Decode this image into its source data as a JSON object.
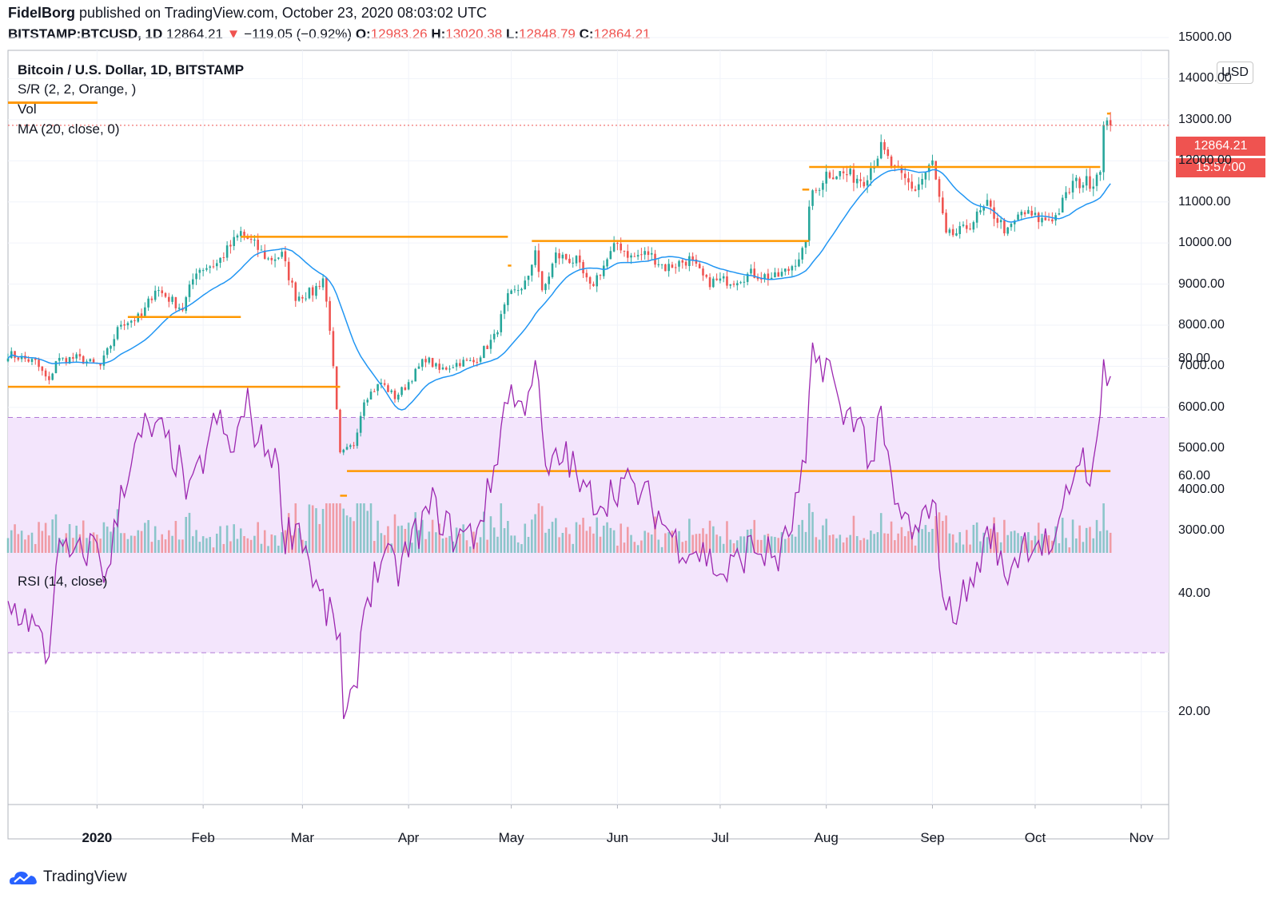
{
  "header": {
    "author": "FidelBorg",
    "published_text": "published on TradingView.com, October 23, 2020 08:03:02 UTC",
    "symbol": "BITSTAMP:BTCUSD, 1D",
    "last": "12864.21",
    "change_arrow": "▼",
    "change": "−119.05 (−0.92%)",
    "o_label": "O:",
    "o": "12983.26",
    "h_label": "H:",
    "h": "13020.38",
    "l_label": "L:",
    "l": "12848.79",
    "c_label": "C:",
    "c": "12864.21"
  },
  "legend": {
    "title": "Bitcoin / U.S. Dollar, 1D, BITSTAMP",
    "sr": "S/R (2, 2, Orange, )",
    "vol": "Vol",
    "ma": "MA (20, close, 0)",
    "rsi": "RSI (14, close)"
  },
  "price_axis": {
    "currency": "USD",
    "labels": [
      "15000.00",
      "14000.00",
      "13000.00",
      "12000.00",
      "11000.00",
      "10000.00",
      "9000.00",
      "8000.00",
      "7000.00",
      "6000.00",
      "5000.00",
      "4000.00",
      "3000.00"
    ],
    "last_price_tag": "12864.21",
    "countdown_tag": "15:57:00"
  },
  "rsi_axis": {
    "labels": [
      "80.00",
      "60.00",
      "40.00",
      "20.00"
    ]
  },
  "time_axis": {
    "labels": [
      "2020",
      "Feb",
      "Mar",
      "Apr",
      "May",
      "Jun",
      "Jul",
      "Aug",
      "Sep",
      "Oct",
      "Nov"
    ]
  },
  "colors": {
    "up": "#26a69a",
    "down": "#ef5350",
    "ma": "#2196f3",
    "sr": "#ff9800",
    "rsi": "#9c27b0",
    "rsi_band": "#f3e5fc",
    "grid": "#f0f3fa",
    "axis": "#b2b5be"
  },
  "brand": {
    "name": "TradingView"
  },
  "chart_data": {
    "type": "candlestick",
    "timeframe": "1D",
    "series_names": [
      "Bitcoin / U.S. Dollar",
      "MA (20, close, 0)",
      "RSI (14, close)"
    ],
    "y_range": [
      2900,
      15100
    ],
    "rsi_range": [
      7,
      93
    ],
    "rsi_bands": [
      30,
      70
    ],
    "close_anchors": [
      [
        "2019-12-06",
        7300
      ],
      [
        "2019-12-10",
        7200
      ],
      [
        "2019-12-14",
        7100
      ],
      [
        "2019-12-18",
        6600
      ],
      [
        "2019-12-20",
        7150
      ],
      [
        "2019-12-26",
        7200
      ],
      [
        "2020-01-02",
        7000
      ],
      [
        "2020-01-08",
        8050
      ],
      [
        "2020-01-14",
        8200
      ],
      [
        "2020-01-18",
        8900
      ],
      [
        "2020-01-22",
        8650
      ],
      [
        "2020-01-26",
        8400
      ],
      [
        "2020-01-30",
        9350
      ],
      [
        "2020-02-05",
        9500
      ],
      [
        "2020-02-12",
        10250
      ],
      [
        "2020-02-16",
        9950
      ],
      [
        "2020-02-20",
        9600
      ],
      [
        "2020-02-24",
        9700
      ],
      [
        "2020-02-28",
        8700
      ],
      [
        "2020-03-04",
        8800
      ],
      [
        "2020-03-07",
        9150
      ],
      [
        "2020-03-09",
        7950
      ],
      [
        "2020-03-12",
        4850
      ],
      [
        "2020-03-16",
        5100
      ],
      [
        "2020-03-19",
        6200
      ],
      [
        "2020-03-24",
        6600
      ],
      [
        "2020-03-28",
        6250
      ],
      [
        "2020-03-31",
        6500
      ],
      [
        "2020-04-06",
        7200
      ],
      [
        "2020-04-10",
        6900
      ],
      [
        "2020-04-16",
        7100
      ],
      [
        "2020-04-20",
        7100
      ],
      [
        "2020-04-26",
        7700
      ],
      [
        "2020-04-30",
        8650
      ],
      [
        "2020-05-06",
        9100
      ],
      [
        "2020-05-08",
        9900
      ],
      [
        "2020-05-10",
        8750
      ],
      [
        "2020-05-14",
        9700
      ],
      [
        "2020-05-20",
        9550
      ],
      [
        "2020-05-24",
        8900
      ],
      [
        "2020-06-01",
        10000
      ],
      [
        "2020-06-05",
        9650
      ],
      [
        "2020-06-10",
        9750
      ],
      [
        "2020-06-15",
        9400
      ],
      [
        "2020-06-22",
        9600
      ],
      [
        "2020-06-27",
        9050
      ],
      [
        "2020-07-05",
        9100
      ],
      [
        "2020-07-10",
        9250
      ],
      [
        "2020-07-17",
        9150
      ],
      [
        "2020-07-21",
        9350
      ],
      [
        "2020-07-26",
        9900
      ],
      [
        "2020-07-27",
        11000
      ],
      [
        "2020-08-01",
        11700
      ],
      [
        "2020-08-05",
        11700
      ],
      [
        "2020-08-12",
        11550
      ],
      [
        "2020-08-17",
        12300
      ],
      [
        "2020-08-21",
        11750
      ],
      [
        "2020-08-27",
        11300
      ],
      [
        "2020-09-01",
        11950
      ],
      [
        "2020-09-05",
        10150
      ],
      [
        "2020-09-10",
        10300
      ],
      [
        "2020-09-17",
        10900
      ],
      [
        "2020-09-23",
        10250
      ],
      [
        "2020-09-27",
        10750
      ],
      [
        "2020-10-03",
        10550
      ],
      [
        "2020-10-07",
        10650
      ],
      [
        "2020-10-12",
        11450
      ],
      [
        "2020-10-18",
        11500
      ],
      [
        "2020-10-20",
        11900
      ],
      [
        "2020-10-21",
        12800
      ],
      [
        "2020-10-22",
        12984
      ],
      [
        "2020-10-23",
        12864
      ]
    ],
    "rsi_anchors": [
      [
        "2019-12-06",
        38
      ],
      [
        "2019-12-12",
        36
      ],
      [
        "2019-12-18",
        29
      ],
      [
        "2019-12-20",
        47
      ],
      [
        "2019-12-26",
        46
      ],
      [
        "2020-01-01",
        49
      ],
      [
        "2020-01-04",
        42
      ],
      [
        "2020-01-08",
        58
      ],
      [
        "2020-01-15",
        68
      ],
      [
        "2020-01-20",
        67
      ],
      [
        "2020-01-25",
        62
      ],
      [
        "2020-01-28",
        56
      ],
      [
        "2020-02-05",
        70
      ],
      [
        "2020-02-09",
        64
      ],
      [
        "2020-02-14",
        72
      ],
      [
        "2020-02-17",
        66
      ],
      [
        "2020-02-22",
        64
      ],
      [
        "2020-02-25",
        50
      ],
      [
        "2020-02-29",
        52
      ],
      [
        "2020-03-05",
        41
      ],
      [
        "2020-03-08",
        37
      ],
      [
        "2020-03-12",
        33
      ],
      [
        "2020-03-13",
        17
      ],
      [
        "2020-03-16",
        22
      ],
      [
        "2020-03-19",
        38
      ],
      [
        "2020-03-24",
        46
      ],
      [
        "2020-03-29",
        44
      ],
      [
        "2020-04-03",
        50
      ],
      [
        "2020-04-08",
        55
      ],
      [
        "2020-04-14",
        50
      ],
      [
        "2020-04-20",
        50
      ],
      [
        "2020-04-25",
        58
      ],
      [
        "2020-04-30",
        75
      ],
      [
        "2020-05-04",
        71
      ],
      [
        "2020-05-08",
        80
      ],
      [
        "2020-05-11",
        60
      ],
      [
        "2020-05-17",
        64
      ],
      [
        "2020-05-22",
        57
      ],
      [
        "2020-05-28",
        56
      ],
      [
        "2020-06-02",
        59
      ],
      [
        "2020-06-10",
        56
      ],
      [
        "2020-06-18",
        49
      ],
      [
        "2020-06-26",
        47
      ],
      [
        "2020-07-02",
        43
      ],
      [
        "2020-07-10",
        48
      ],
      [
        "2020-07-18",
        46
      ],
      [
        "2020-07-21",
        50
      ],
      [
        "2020-07-26",
        62
      ],
      [
        "2020-07-28",
        80
      ],
      [
        "2020-08-02",
        79
      ],
      [
        "2020-08-05",
        70
      ],
      [
        "2020-08-10",
        71
      ],
      [
        "2020-08-14",
        62
      ],
      [
        "2020-08-17",
        69
      ],
      [
        "2020-08-21",
        55
      ],
      [
        "2020-08-28",
        49
      ],
      [
        "2020-09-01",
        58
      ],
      [
        "2020-09-05",
        36
      ],
      [
        "2020-09-12",
        41
      ],
      [
        "2020-09-18",
        51
      ],
      [
        "2020-09-22",
        43
      ],
      [
        "2020-09-28",
        49
      ],
      [
        "2020-10-03",
        49
      ],
      [
        "2020-10-07",
        47
      ],
      [
        "2020-10-10",
        56
      ],
      [
        "2020-10-14",
        64
      ],
      [
        "2020-10-18",
        60
      ],
      [
        "2020-10-20",
        69
      ],
      [
        "2020-10-21",
        80
      ],
      [
        "2020-10-23",
        77
      ]
    ],
    "support_resistance": [
      {
        "level": 6500,
        "from": "2019-12-06",
        "to": "2020-03-12"
      },
      {
        "level": 8200,
        "from": "2020-01-10",
        "to": "2020-02-12"
      },
      {
        "level": 10150,
        "from": "2020-02-12",
        "to": "2020-04-30"
      },
      {
        "level": 3850,
        "from": "2020-03-12",
        "to": "2020-03-14"
      },
      {
        "level": 4450,
        "from": "2020-03-14",
        "to": "2020-10-23"
      },
      {
        "level": 9450,
        "from": "2020-04-30",
        "to": "2020-05-01"
      },
      {
        "level": 10050,
        "from": "2020-05-07",
        "to": "2020-07-27"
      },
      {
        "level": 11300,
        "from": "2020-07-25",
        "to": "2020-07-27"
      },
      {
        "level": 11850,
        "from": "2020-07-27",
        "to": "2020-10-20"
      },
      {
        "level": 13150,
        "from": "2020-10-22",
        "to": "2020-10-23"
      }
    ],
    "current_price": 12864.21
  }
}
